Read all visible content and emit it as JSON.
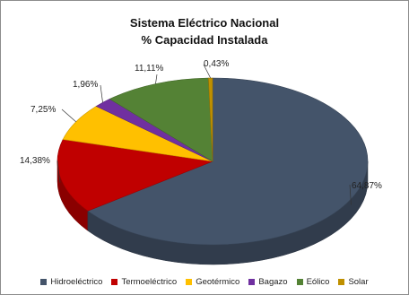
{
  "chart_data": {
    "type": "pie",
    "title": "Sistema Eléctrico Nacional",
    "subtitle": "% Capacidad Instalada",
    "legend_position": "bottom",
    "slices": [
      {
        "name": "Hidroeléctrico",
        "value": 64.87,
        "label": "64,87%",
        "color": "#44546A"
      },
      {
        "name": "Termoeléctrico",
        "value": 14.38,
        "label": "14,38%",
        "color": "#C00000"
      },
      {
        "name": "Geotérmico",
        "value": 7.25,
        "label": "7,25%",
        "color": "#FFC000"
      },
      {
        "name": "Bagazo",
        "value": 1.96,
        "label": "1,96%",
        "color": "#7030A0"
      },
      {
        "name": "Eólico",
        "value": 11.11,
        "label": "11,11%",
        "color": "#548235"
      },
      {
        "name": "Solar",
        "value": 0.43,
        "label": "0,43%",
        "color": "#BF9000"
      }
    ]
  }
}
